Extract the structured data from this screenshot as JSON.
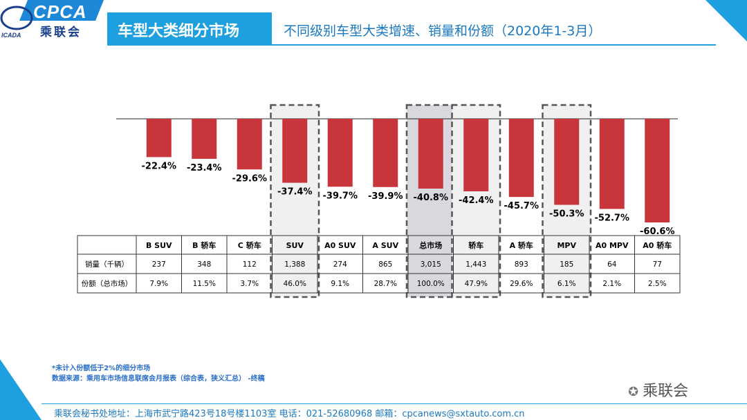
{
  "header": {
    "logo_text": "CPCA",
    "logo_cn": "乘联会",
    "logo_sub": "ICADA",
    "title": "车型大类细分市场",
    "subtitle": "不同级别车型大类增速、销量和份额（2020年1-3月）"
  },
  "colors": {
    "bar": "#c8353a",
    "accent": "#1ea0e0",
    "highlight": "#f0f0f0",
    "highlight_dark": "#d9d8df"
  },
  "chart_data": {
    "type": "bar",
    "title": "不同级别车型大类增速、销量和份额（2020年1-3月）",
    "categories": [
      "B SUV",
      "B 轿车",
      "C 轿车",
      "SUV",
      "A0 SUV",
      "A SUV",
      "总市场",
      "轿车",
      "A 轿车",
      "MPV",
      "A0 MPV",
      "A0 轿车"
    ],
    "values": [
      -22.4,
      -23.4,
      -29.6,
      -37.4,
      -39.7,
      -39.9,
      -40.8,
      -42.4,
      -45.7,
      -50.3,
      -52.7,
      -60.6
    ],
    "value_labels": [
      "-22.4%",
      "-23.4%",
      "-29.6%",
      "-37.4%",
      "-39.7%",
      "-39.9%",
      "-40.8%",
      "-42.4%",
      "-45.7%",
      "-50.3%",
      "-52.7%",
      "-60.6%"
    ],
    "highlighted": [
      "SUV",
      "总市场",
      "轿车",
      "MPV"
    ],
    "ylim": [
      -70,
      0
    ],
    "table": {
      "rows": [
        {
          "label": "销量（千辆）",
          "values": [
            "237",
            "348",
            "112",
            "1,388",
            "274",
            "865",
            "3,015",
            "1,443",
            "893",
            "185",
            "64",
            "77"
          ]
        },
        {
          "label": "份额（总市场）",
          "values": [
            "7.9%",
            "11.5%",
            "3.7%",
            "46.0%",
            "9.1%",
            "28.7%",
            "100.0%",
            "47.9%",
            "29.6%",
            "6.1%",
            "2.1%",
            "2.5%"
          ]
        }
      ]
    }
  },
  "notes": [
    "*未计入份额低于2%的细分市场",
    "数据来源：乘用车市场信息联席会月报表（综合表，狭义汇总）   -终稿"
  ],
  "footer": "乘联会秘书处地址：上海市武宁路423号18号楼1103室  电话：021-52680968  邮箱：cpcanews@sxtauto.com.cn",
  "wechat": "乘联会"
}
